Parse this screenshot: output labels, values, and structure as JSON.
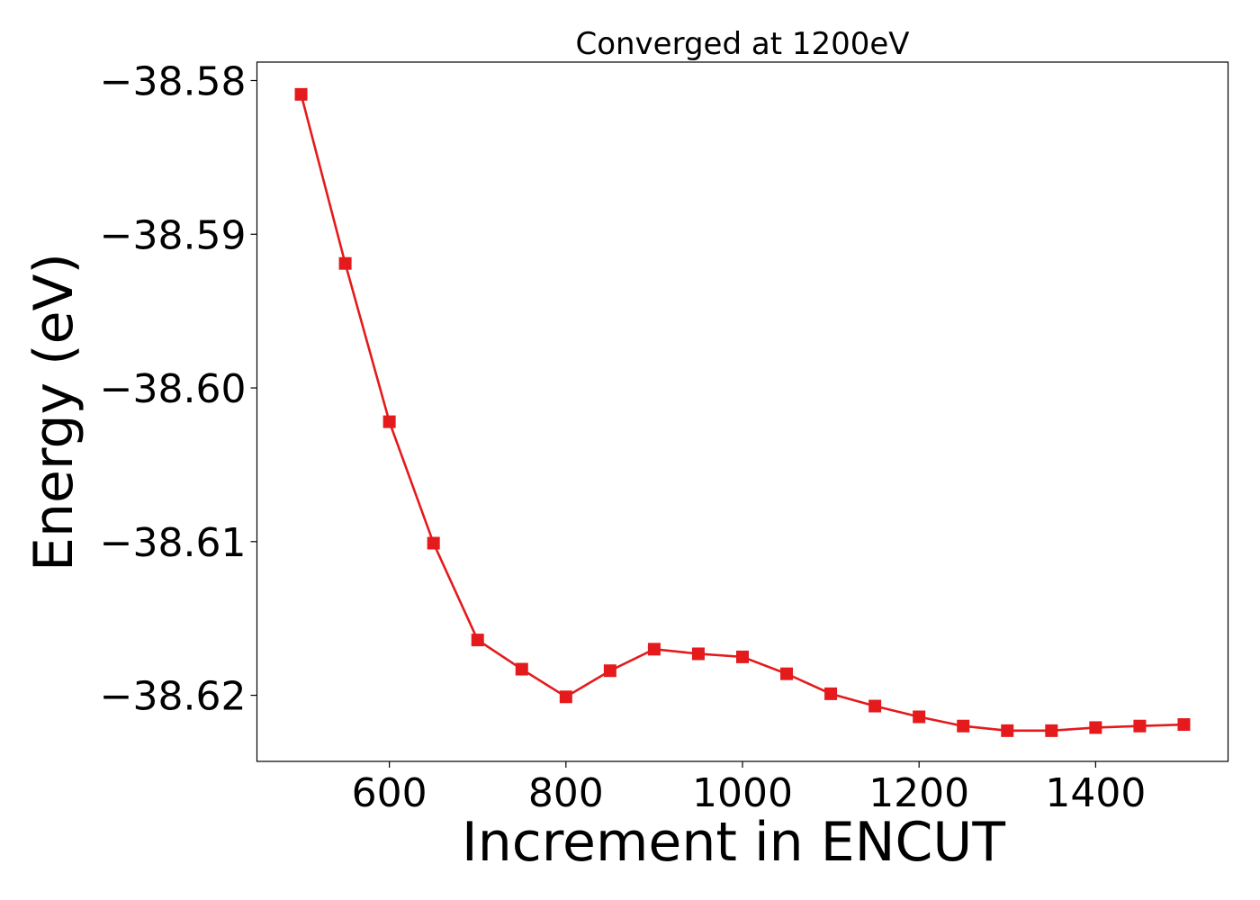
{
  "chart_data": {
    "type": "line",
    "title": "Converged at 1200eV",
    "xlabel": "Increment in ENCUT",
    "ylabel": "Energy (eV)",
    "x": [
      500,
      550,
      600,
      650,
      700,
      750,
      800,
      850,
      900,
      950,
      1000,
      1050,
      1100,
      1150,
      1200,
      1250,
      1300,
      1350,
      1400,
      1450,
      1500
    ],
    "series": [
      {
        "values": [
          -38.5809,
          -38.5919,
          -38.6022,
          -38.6101,
          -38.6164,
          -38.6183,
          -38.6201,
          -38.6184,
          -38.617,
          -38.6173,
          -38.6175,
          -38.6186,
          -38.6199,
          -38.6207,
          -38.6214,
          -38.622,
          -38.6223,
          -38.6223,
          -38.6221,
          -38.622,
          -38.6219
        ],
        "color": "#e41a1c",
        "marker": "square"
      }
    ],
    "xlim": [
      450,
      1550
    ],
    "ylim": [
      -38.6243,
      -38.5788
    ],
    "xticks": [
      600,
      800,
      1000,
      1200,
      1400
    ],
    "xtick_labels": [
      "600",
      "800",
      "1000",
      "1200",
      "1400"
    ],
    "yticks": [
      -38.58,
      -38.59,
      -38.6,
      -38.61,
      -38.62
    ],
    "ytick_labels": [
      "−38.58",
      "−38.59",
      "−38.60",
      "−38.61",
      "−38.62"
    ],
    "grid": false,
    "legend": "none"
  }
}
